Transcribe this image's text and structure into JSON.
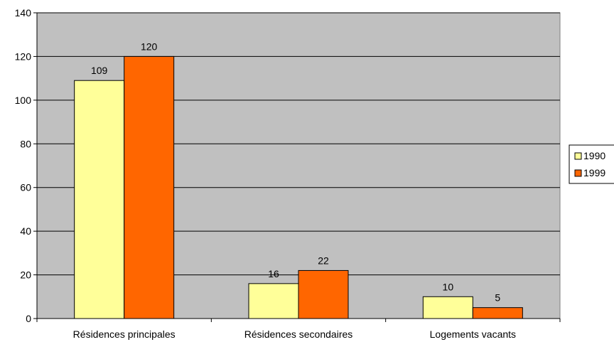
{
  "chart_data": {
    "type": "bar",
    "categories": [
      "Résidences principales",
      "Résidences secondaires",
      "Logements vacants"
    ],
    "series": [
      {
        "name": "1990",
        "values": [
          109,
          16,
          10
        ],
        "color": "#FFFF99"
      },
      {
        "name": "1999",
        "values": [
          120,
          22,
          5
        ],
        "color": "#FF6600"
      }
    ],
    "ylim": [
      0,
      140
    ],
    "yticks": [
      0,
      20,
      40,
      60,
      80,
      100,
      120,
      140
    ],
    "grid": true,
    "legend": "right",
    "plot_background": "#C0C0C0",
    "data_labels": true
  }
}
